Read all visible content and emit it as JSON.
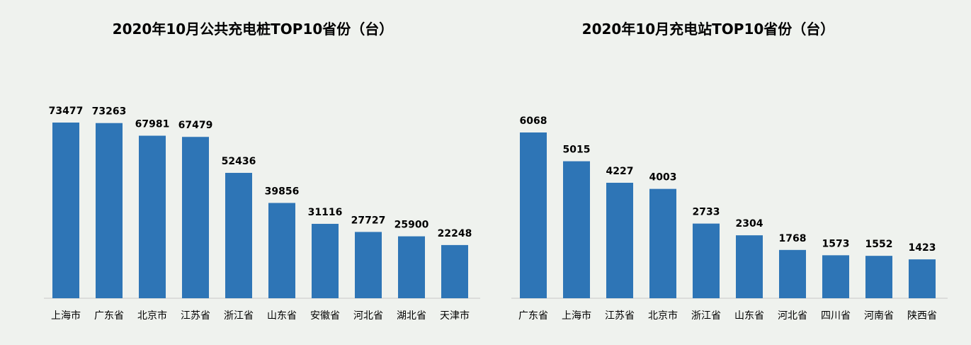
{
  "chart_data": [
    {
      "type": "bar",
      "title": "2020年10月公共充电桩TOP10省份（台）",
      "categories": [
        "上海市",
        "广东省",
        "北京市",
        "江苏省",
        "浙江省",
        "山东省",
        "安徽省",
        "河北省",
        "湖北省",
        "天津市"
      ],
      "values": [
        73477,
        73263,
        67981,
        67479,
        52436,
        39856,
        31116,
        27727,
        25900,
        22248
      ],
      "ylim": [
        0,
        80000
      ],
      "grid": false,
      "color": "#2e75b6"
    },
    {
      "type": "bar",
      "title": "2020年10月充电站TOP10省份（台）",
      "categories": [
        "广东省",
        "上海市",
        "江苏省",
        "北京市",
        "浙江省",
        "山东省",
        "河北省",
        "四川省",
        "河南省",
        "陕西省"
      ],
      "values": [
        6068,
        5015,
        4227,
        4003,
        2733,
        2304,
        1768,
        1573,
        1552,
        1423
      ],
      "ylim": [
        0,
        6500
      ],
      "grid": false,
      "color": "#2e75b6"
    }
  ]
}
